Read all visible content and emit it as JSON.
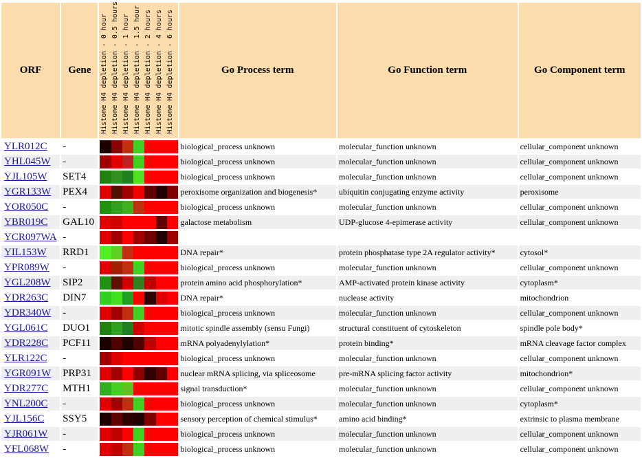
{
  "headers": {
    "orf": "ORF",
    "gene": "Gene",
    "process": "Go Process term",
    "function": "Go Function term",
    "component": "Go Component term"
  },
  "samples": [
    "Histone H4 depletion - 0 hour",
    "Histone H4 depletion - 0.5 hours",
    "Histone H4 depletion - 1 hour",
    "Histone H4 depletion - 1.5 hour",
    "Histone H4 depletion - 2 hours",
    "Histone H4 depletion - 4 hours",
    "Histone H4 depletion - 6 hours"
  ],
  "colors": {
    "header_bg": "#fcdcac",
    "link": "#1a1aa6",
    "row_alt": "#efefef",
    "heat_high": "#ff0000",
    "heat_low": "#00ff00",
    "heat_zero": "#000000"
  },
  "rows": [
    {
      "orf": "YLR012C",
      "gene": "-",
      "process": "biological_process unknown",
      "function": "molecular_function unknown",
      "component": "cellular_component unknown",
      "heat": [
        "#1a0000",
        "#8a0000",
        "#c03010",
        "#40d020",
        "#ff0000",
        "#ff0000",
        "#ff0000"
      ]
    },
    {
      "orf": "YHL045W",
      "gene": "-",
      "process": "biological_process unknown",
      "function": "molecular_function unknown",
      "component": "cellular_component unknown",
      "heat": [
        "#a00000",
        "#e00000",
        "#c02020",
        "#40d020",
        "#ff0000",
        "#ff0000",
        "#ff0000"
      ]
    },
    {
      "orf": "YJL105W",
      "gene": "SET4",
      "process": "biological_process unknown",
      "function": "molecular_function unknown",
      "component": "cellular_component unknown",
      "heat": [
        "#208010",
        "#309020",
        "#208020",
        "#50e020",
        "#ff0000",
        "#ff0000",
        "#ff0000"
      ]
    },
    {
      "orf": "YGR133W",
      "gene": "PEX4",
      "process": "peroxisome organization and biogenesis*",
      "function": "ubiquitin conjugating enzyme activity",
      "component": "peroxisome",
      "heat": [
        "#e00000",
        "#501000",
        "#a00000",
        "#f00000",
        "#600000",
        "#200000",
        "#800000"
      ]
    },
    {
      "orf": "YOR050C",
      "gene": "-",
      "process": "biological_process unknown",
      "function": "molecular_function unknown",
      "component": "cellular_component unknown",
      "heat": [
        "#209010",
        "#30a020",
        "#40b020",
        "#c03010",
        "#ff0000",
        "#ff0000",
        "#ff0000"
      ]
    },
    {
      "orf": "YBR019C",
      "gene": "GAL10",
      "process": "galactose metabolism",
      "function": "UDP-glucose 4-epimerase activity",
      "component": "cellular_component unknown",
      "heat": [
        "#e00000",
        "#d00000",
        "#ff0000",
        "#ff0000",
        "#ff0000",
        "#600000",
        "#ff0000"
      ]
    },
    {
      "orf": "YCR097WA",
      "gene": "-",
      "process": "",
      "function": "",
      "component": "",
      "heat": [
        "#e00000",
        "#a00000",
        "#ff0000",
        "#a00000",
        "#700000",
        "#200000",
        "#a00000"
      ]
    },
    {
      "orf": "YIL153W",
      "gene": "RRD1",
      "process": "DNA repair*",
      "function": "protein phosphatase type 2A regulator activity*",
      "component": "cytosol*",
      "heat": [
        "#50f020",
        "#60d020",
        "#c03010",
        "#ff0000",
        "#ff0000",
        "#ff0000",
        "#ff0000"
      ]
    },
    {
      "orf": "YPR089W",
      "gene": "-",
      "process": "biological_process unknown",
      "function": "molecular_function unknown",
      "component": "cellular_component unknown",
      "heat": [
        "#e00000",
        "#a02000",
        "#c03010",
        "#40d020",
        "#ff0000",
        "#ff0000",
        "#ff0000"
      ]
    },
    {
      "orf": "YGL208W",
      "gene": "SIP2",
      "process": "protein amino acid phosphorylation*",
      "function": "AMP-activated protein kinase activity",
      "component": "cytoplasm*",
      "heat": [
        "#209010",
        "#601000",
        "#d00000",
        "#308020",
        "#c00000",
        "#ff0000",
        "#ff0000"
      ]
    },
    {
      "orf": "YDR263C",
      "gene": "DIN7",
      "process": "DNA repair*",
      "function": "nuclease activity",
      "component": "mitochondrion",
      "heat": [
        "#30d020",
        "#40e020",
        "#20a020",
        "#ff0000",
        "#300000",
        "#e00000",
        "#ff0000"
      ]
    },
    {
      "orf": "YDR340W",
      "gene": "-",
      "process": "biological_process unknown",
      "function": "molecular_function unknown",
      "component": "cellular_component unknown",
      "heat": [
        "#e00000",
        "#a00000",
        "#c03010",
        "#40d020",
        "#ff0000",
        "#ff0000",
        "#ff0000"
      ]
    },
    {
      "orf": "YGL061C",
      "gene": "DUO1",
      "process": "mitotic spindle assembly (sensu Fungi)",
      "function": "structural constituent of cytoskeleton",
      "component": "spindle pole body*",
      "heat": [
        "#208010",
        "#30a020",
        "#208020",
        "#d00000",
        "#ff0000",
        "#ff0000",
        "#ff0000"
      ]
    },
    {
      "orf": "YDR228C",
      "gene": "PCF11",
      "process": "mRNA polyadenylylation*",
      "function": "protein binding*",
      "component": "mRNA cleavage factor complex",
      "heat": [
        "#1a0000",
        "#500000",
        "#200000",
        "#500000",
        "#c00000",
        "#ff0000",
        "#ff0000"
      ]
    },
    {
      "orf": "YLR122C",
      "gene": "-",
      "process": "biological_process unknown",
      "function": "molecular_function unknown",
      "component": "cellular_component unknown",
      "heat": [
        "#a00000",
        "#e00000",
        "#ff0000",
        "#ff0000",
        "#ff0000",
        "#ff0000",
        "#ff0000"
      ]
    },
    {
      "orf": "YGR091W",
      "gene": "PRP31",
      "process": "nuclear mRNA splicing, via spliceosome",
      "function": "pre-mRNA splicing factor activity",
      "component": "mitochondrion*",
      "heat": [
        "#e00000",
        "#a00000",
        "#ff0000",
        "#900000",
        "#300000",
        "#600000",
        "#ff0000"
      ]
    },
    {
      "orf": "YDR277C",
      "gene": "MTH1",
      "process": "signal transduction*",
      "function": "molecular_function unknown",
      "component": "cellular_component unknown",
      "heat": [
        "#30b020",
        "#40d020",
        "#60c020",
        "#ff0000",
        "#ff0000",
        "#ff0000",
        "#ff0000"
      ]
    },
    {
      "orf": "YNL200C",
      "gene": "-",
      "process": "biological_process unknown",
      "function": "molecular_function unknown",
      "component": "cytoplasm*",
      "heat": [
        "#e00000",
        "#a00000",
        "#c03010",
        "#40d020",
        "#ff0000",
        "#ff0000",
        "#ff0000"
      ]
    },
    {
      "orf": "YJL156C",
      "gene": "SSY5",
      "process": "sensory perception of chemical stimulus*",
      "function": "amino acid binding*",
      "component": "extrinsic to plasma membrane",
      "heat": [
        "#1a0000",
        "#600000",
        "#300000",
        "#200000",
        "#800000",
        "#ff0000",
        "#ff0000"
      ]
    },
    {
      "orf": "YJR061W",
      "gene": "-",
      "process": "biological_process unknown",
      "function": "molecular_function unknown",
      "component": "cellular_component unknown",
      "heat": [
        "#e00000",
        "#c00000",
        "#ff0000",
        "#40d020",
        "#ff0000",
        "#ff0000",
        "#ff0000"
      ]
    },
    {
      "orf": "YFL068W",
      "gene": "-",
      "process": "biological_process unknown",
      "function": "molecular_function unknown",
      "component": "cellular_component unknown",
      "heat": [
        "#e00000",
        "#c00000",
        "#c03010",
        "#40d020",
        "#ff0000",
        "#ff0000",
        "#ff0000"
      ]
    }
  ]
}
